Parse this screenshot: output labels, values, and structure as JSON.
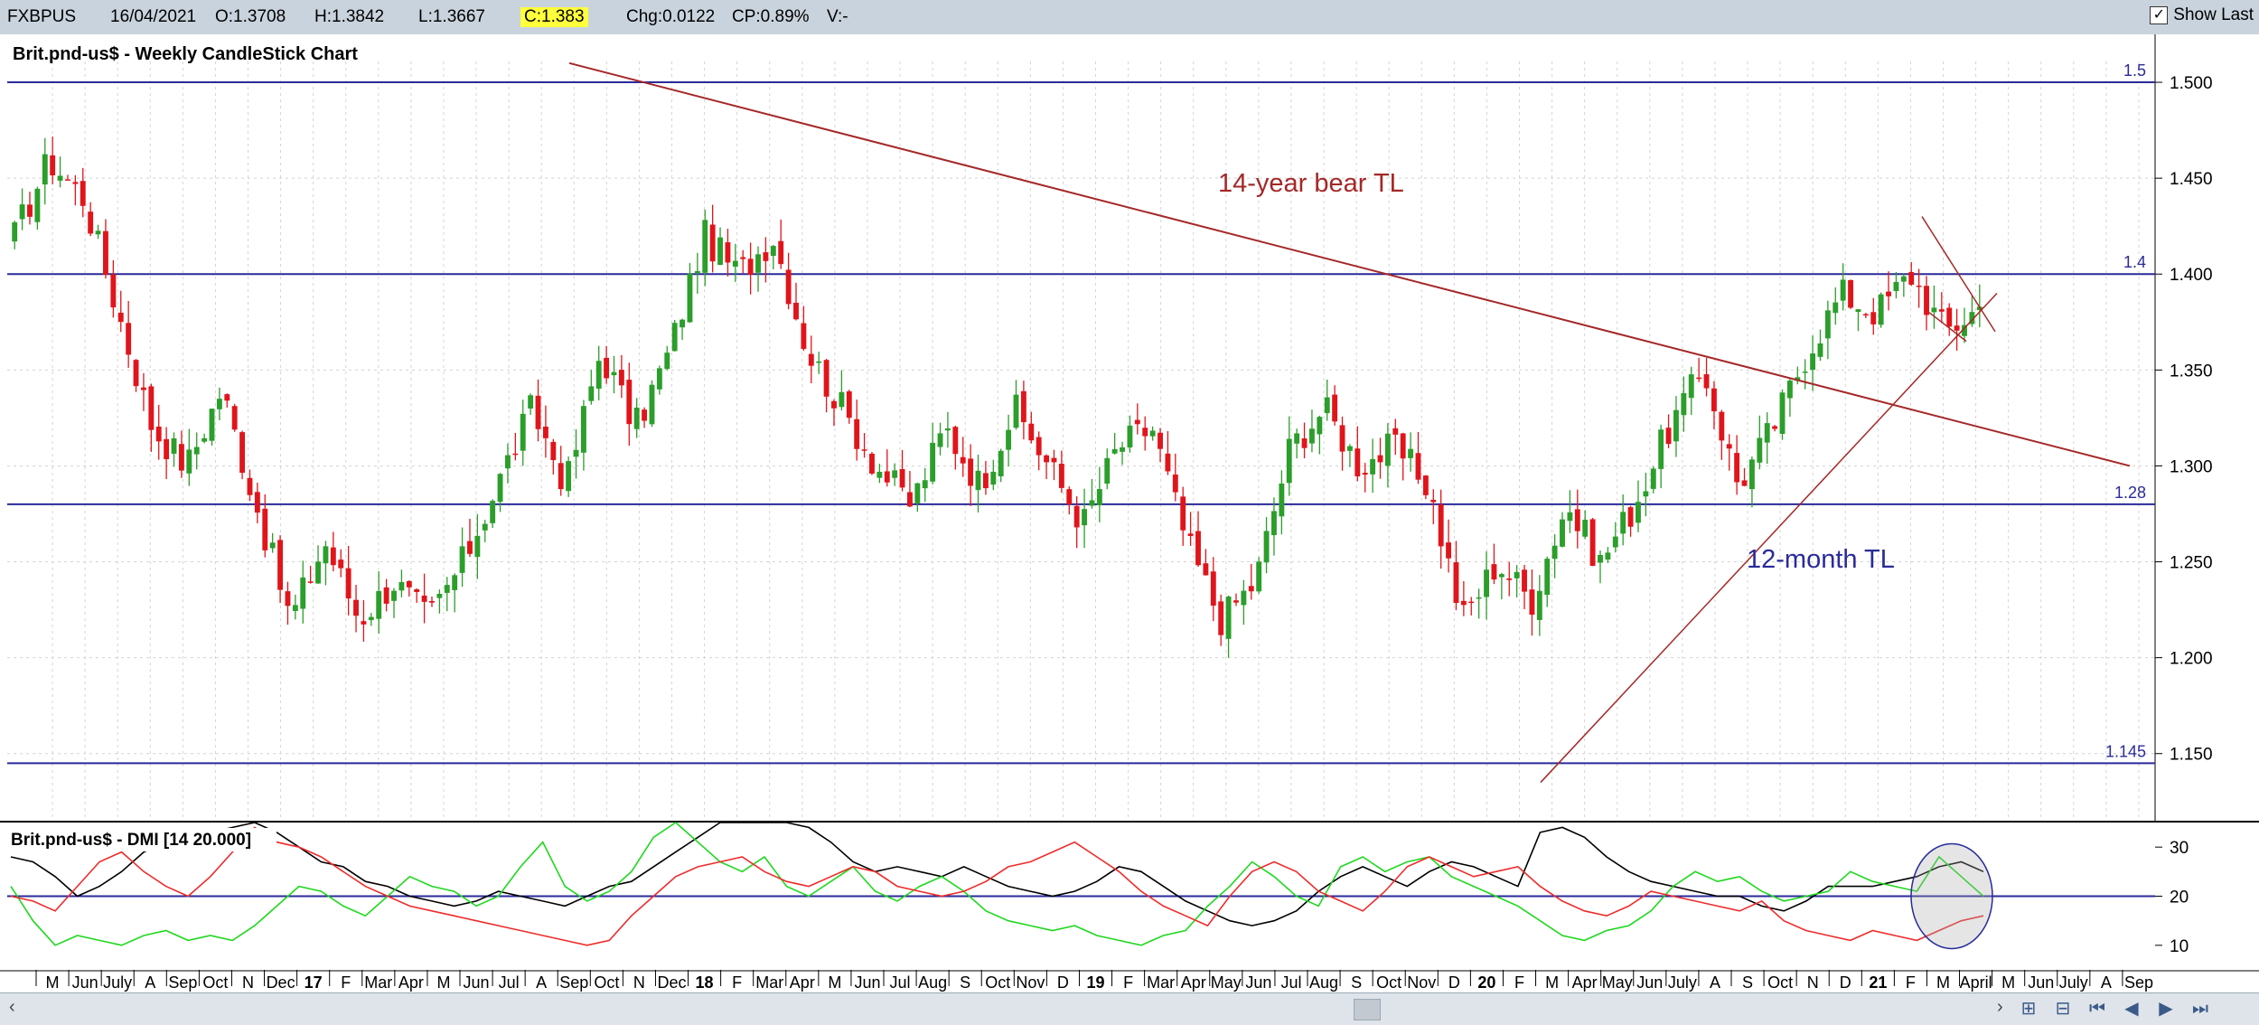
{
  "header": {
    "symbol": "FXBPUS",
    "date": "16/04/2021",
    "open": "O:1.3708",
    "high": "H:1.3842",
    "low": "L:1.3667",
    "close": "C:1.383",
    "change": "Chg:0.0122",
    "change_pct": "CP:0.89%",
    "volume": "V:-",
    "show_last_label": "Show Last",
    "show_last_checked": true
  },
  "chart_data": [
    {
      "type": "candlestick",
      "title": "Brit.pnd-us$ - Weekly CandleStick Chart",
      "ylim": [
        1.115,
        1.525
      ],
      "y_ticks": [
        "1.500",
        "1.450",
        "1.400",
        "1.350",
        "1.300",
        "1.250",
        "1.200",
        "1.150"
      ],
      "candle_colors": {
        "up": "#2b9e2b",
        "down": "#e0151b"
      },
      "horizontal_lines": [
        {
          "label": "1.5",
          "y": 1.5,
          "color": "#2a2a9a"
        },
        {
          "label": "1.4",
          "y": 1.4,
          "color": "#2a2a9a"
        },
        {
          "label": "1.28",
          "y": 1.28,
          "color": "#2a2a9a"
        },
        {
          "label": "1.145",
          "y": 1.145,
          "color": "#2a2a9a"
        }
      ],
      "annotations": [
        {
          "text": "14-year bear TL",
          "color": "#a52828"
        },
        {
          "text": "12-month TL",
          "color": "#2a2a9a"
        }
      ],
      "anchor_prices": [
        1.42,
        1.46,
        1.44,
        1.38,
        1.32,
        1.3,
        1.34,
        1.28,
        1.22,
        1.26,
        1.22,
        1.24,
        1.22,
        1.25,
        1.29,
        1.33,
        1.29,
        1.36,
        1.32,
        1.36,
        1.42,
        1.4,
        1.42,
        1.36,
        1.33,
        1.3,
        1.28,
        1.32,
        1.29,
        1.33,
        1.3,
        1.27,
        1.31,
        1.32,
        1.26,
        1.22,
        1.24,
        1.31,
        1.33,
        1.3,
        1.31,
        1.29,
        1.22,
        1.25,
        1.23,
        1.28,
        1.25,
        1.28,
        1.32,
        1.35,
        1.29,
        1.32,
        1.36,
        1.39,
        1.38,
        1.4,
        1.37,
        1.383
      ]
    },
    {
      "type": "line",
      "title": "Brit.pnd-us$ - DMI [14 20.000]",
      "ylim": [
        5,
        35
      ],
      "y_ticks": [
        "30",
        "20",
        "10"
      ],
      "reference_line": {
        "y": 20,
        "color": "#2a2a9a"
      },
      "series": [
        {
          "color": "#000000",
          "values": [
            28,
            27,
            24,
            20,
            22,
            25,
            29,
            31,
            32,
            33,
            34,
            35,
            33,
            30,
            27,
            26,
            23,
            22,
            20,
            19,
            18,
            19,
            21,
            20,
            19,
            18,
            20,
            22,
            23,
            26,
            29,
            32,
            35,
            37,
            38,
            36,
            34,
            31,
            27,
            25,
            26,
            25,
            24,
            26,
            24,
            22,
            21,
            20,
            21,
            23,
            26,
            25,
            22,
            19,
            17,
            15,
            14,
            15,
            17,
            21,
            24,
            26,
            24,
            22,
            25,
            27,
            26,
            24,
            22,
            33,
            34,
            32,
            28,
            25,
            23,
            22,
            21,
            20,
            20,
            18,
            17,
            19,
            22,
            22,
            22,
            23,
            24,
            26,
            27,
            25
          ]
        },
        {
          "color": "#1ed81e",
          "values": [
            22,
            15,
            10,
            12,
            11,
            10,
            12,
            13,
            11,
            12,
            11,
            14,
            18,
            22,
            21,
            18,
            16,
            20,
            24,
            22,
            21,
            18,
            20,
            26,
            31,
            22,
            19,
            21,
            25,
            32,
            38,
            31,
            27,
            25,
            28,
            22,
            20,
            23,
            26,
            21,
            19,
            22,
            24,
            21,
            17,
            15,
            14,
            13,
            14,
            12,
            11,
            10,
            12,
            13,
            18,
            22,
            27,
            24,
            20,
            18,
            26,
            28,
            25,
            27,
            28,
            24,
            22,
            20,
            18,
            15,
            12,
            11,
            13,
            14,
            17,
            22,
            25,
            23,
            24,
            21,
            19,
            20,
            21,
            25,
            23,
            22,
            21,
            28,
            24,
            20
          ]
        },
        {
          "color": "#ef2b2b",
          "values": [
            20,
            19,
            17,
            22,
            27,
            29,
            25,
            22,
            20,
            24,
            29,
            34,
            31,
            30,
            28,
            25,
            22,
            20,
            18,
            17,
            16,
            15,
            14,
            13,
            12,
            11,
            10,
            11,
            16,
            20,
            24,
            26,
            27,
            28,
            25,
            23,
            22,
            24,
            26,
            25,
            22,
            21,
            20,
            21,
            23,
            26,
            27,
            29,
            31,
            28,
            25,
            21,
            18,
            16,
            14,
            20,
            25,
            27,
            25,
            21,
            19,
            17,
            21,
            26,
            28,
            26,
            24,
            25,
            26,
            22,
            19,
            17,
            16,
            18,
            21,
            20,
            19,
            18,
            17,
            19,
            15,
            13,
            12,
            11,
            13,
            12,
            11,
            13,
            15,
            16
          ]
        }
      ]
    }
  ],
  "x_axis": {
    "labels": [
      "M",
      "Jun",
      "July",
      "A",
      "Sep",
      "Oct",
      "N",
      "Dec",
      "17",
      "F",
      "Mar",
      "Apr",
      "M",
      "Jun",
      "Jul",
      "A",
      "Sep",
      "Oct",
      "N",
      "Dec",
      "18",
      "F",
      "Mar",
      "Apr",
      "M",
      "Jun",
      "Jul",
      "Aug",
      "S",
      "Oct",
      "Nov",
      "D",
      "19",
      "F",
      "Mar",
      "Apr",
      "May",
      "Jun",
      "Jul",
      "Aug",
      "S",
      "Oct",
      "Nov",
      "D",
      "20",
      "F",
      "M",
      "Apr",
      "May",
      "Jun",
      "July",
      "A",
      "S",
      "Oct",
      "N",
      "D",
      "21",
      "F",
      "M",
      "April",
      "M",
      "Jun",
      "July",
      "A",
      "Sep"
    ],
    "bold_labels": [
      "17",
      "18",
      "19",
      "20",
      "21"
    ]
  },
  "icons": [
    "scroll-left-icon",
    "scroll-right-icon",
    "zoom-in-icon",
    "zoom-out-icon",
    "first-icon",
    "prev-icon",
    "next-icon",
    "last-icon"
  ]
}
